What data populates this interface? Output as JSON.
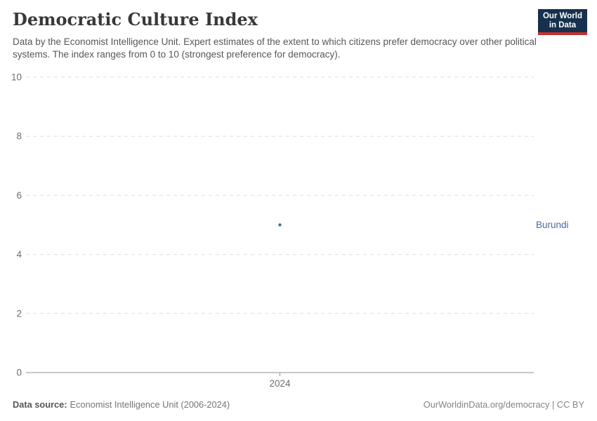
{
  "header": {
    "title": "Democratic Culture Index",
    "subtitle": "Data by the Economist Intelligence Unit. Expert estimates of the extent to which citizens prefer democracy over other political systems. The index ranges from 0 to 10 (strongest preference for democracy).",
    "logo": {
      "line1": "Our World",
      "line2": "in Data"
    }
  },
  "chart_data": {
    "type": "scatter",
    "title": "Democratic Culture Index",
    "x": [
      2024
    ],
    "series": [
      {
        "name": "Burundi",
        "values": [
          5.0
        ],
        "color": "#4c6a9c"
      }
    ],
    "xticks": [
      "2024"
    ],
    "yticks": [
      0,
      2,
      4,
      6,
      8,
      10
    ],
    "ylim": [
      0,
      10
    ],
    "xlabel": "",
    "ylabel": "",
    "grid": "horizontal-dashed",
    "legend": "entity-label-right"
  },
  "footer": {
    "source_label": "Data source:",
    "source_value": "Economist Intelligence Unit (2006-2024)",
    "credit": "OurWorldinData.org/democracy | CC BY"
  },
  "colors": {
    "brand_navy": "#16304d",
    "brand_red": "#c7302f",
    "series_blue": "#4c6a9c",
    "gridline": "#dedede",
    "axis_line": "#8f8f8f",
    "tick_label": "#6e6e6e"
  }
}
